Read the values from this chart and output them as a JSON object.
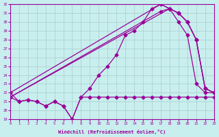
{
  "bg_color": "#c8eeee",
  "line_color": "#990099",
  "grid_color": "#aacccc",
  "xlabel": "Windchill (Refroidissement éolien,°C)",
  "xlim": [
    0,
    23
  ],
  "ylim": [
    19,
    32
  ],
  "yticks": [
    19,
    20,
    21,
    22,
    23,
    24,
    25,
    26,
    27,
    28,
    29,
    30,
    31,
    32
  ],
  "xticks": [
    0,
    1,
    2,
    3,
    4,
    5,
    6,
    7,
    8,
    9,
    10,
    11,
    12,
    13,
    14,
    15,
    16,
    17,
    18,
    19,
    20,
    21,
    22,
    23
  ],
  "line_jagged_x": [
    0,
    1,
    2,
    3,
    4,
    5,
    6,
    7,
    8,
    9,
    10,
    11,
    12,
    13,
    14,
    15,
    16,
    17,
    18,
    19,
    20,
    21,
    22,
    23
  ],
  "line_jagged_y": [
    22.0,
    21.0,
    21.2,
    21.0,
    20.5,
    21.0,
    20.5,
    19.0,
    21.5,
    22.5,
    24.0,
    25.0,
    26.3,
    28.5,
    29.0,
    30.0,
    31.5,
    32.0,
    31.5,
    30.0,
    28.5,
    23.0,
    22.0,
    22.0
  ],
  "line_flat_x": [
    0,
    1,
    2,
    3,
    4,
    5,
    6,
    7,
    8,
    9,
    10,
    11,
    12,
    13,
    14,
    15,
    16,
    17,
    18,
    19,
    20,
    21,
    22,
    23
  ],
  "line_flat_y": [
    21.5,
    21.0,
    21.2,
    21.0,
    20.5,
    21.0,
    20.5,
    19.0,
    21.5,
    21.5,
    21.5,
    21.5,
    21.5,
    21.5,
    21.5,
    21.5,
    21.5,
    21.5,
    21.5,
    21.5,
    21.5,
    21.5,
    21.5,
    21.5
  ],
  "line_diag1_x": [
    0,
    18,
    19,
    20,
    21,
    22,
    23
  ],
  "line_diag1_y": [
    21.5,
    31.5,
    31.0,
    30.0,
    28.0,
    22.5,
    22.0
  ],
  "line_diag2_x": [
    0,
    17,
    18,
    19,
    20,
    21,
    22,
    23
  ],
  "line_diag2_y": [
    21.5,
    31.2,
    31.5,
    31.0,
    30.0,
    28.0,
    22.5,
    22.0
  ],
  "line_diag3_x": [
    0,
    17,
    18,
    19,
    20,
    21,
    22,
    23
  ],
  "line_diag3_y": [
    22.0,
    32.0,
    31.5,
    31.0,
    30.0,
    28.0,
    22.5,
    22.0
  ]
}
